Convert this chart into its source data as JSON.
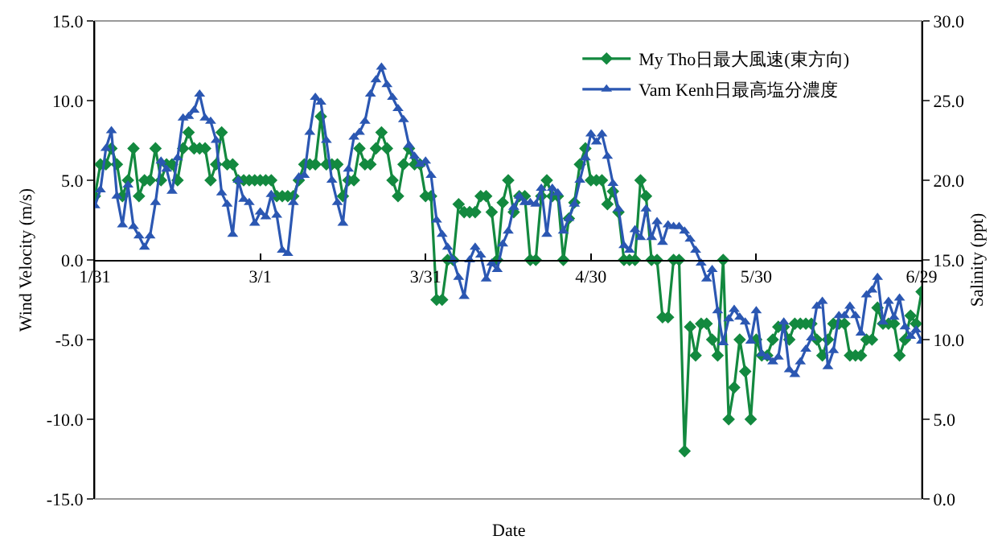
{
  "chart_data": {
    "type": "line",
    "xlabel": "Date",
    "ylabel": "Wind Velocity (m/s)",
    "y2label": "Salinity (ppt)",
    "x": [
      "--01-31",
      "--02-01",
      "--02-02",
      "--02-03",
      "--02-04",
      "--02-05",
      "--02-06",
      "--02-07",
      "--02-08",
      "--02-09",
      "--02-10",
      "--02-11",
      "--02-12",
      "--02-13",
      "--02-14",
      "--02-15",
      "--02-16",
      "--02-17",
      "--02-18",
      "--02-19",
      "--02-20",
      "--02-21",
      "--02-22",
      "--02-23",
      "--02-24",
      "--02-25",
      "--02-26",
      "--02-27",
      "--02-28",
      "--02-29",
      "--03-01",
      "--03-02",
      "--03-03",
      "--03-04",
      "--03-05",
      "--03-06",
      "--03-07",
      "--03-08",
      "--03-09",
      "--03-10",
      "--03-11",
      "--03-12",
      "--03-13",
      "--03-14",
      "--03-15",
      "--03-16",
      "--03-17",
      "--03-18",
      "--03-19",
      "--03-20",
      "--03-21",
      "--03-22",
      "--03-23",
      "--03-24",
      "--03-25",
      "--03-26",
      "--03-27",
      "--03-28",
      "--03-29",
      "--03-30",
      "--03-31",
      "--04-01",
      "--04-02",
      "--04-03",
      "--04-04",
      "--04-05",
      "--04-06",
      "--04-07",
      "--04-08",
      "--04-09",
      "--04-10",
      "--04-11",
      "--04-12",
      "--04-13",
      "--04-14",
      "--04-15",
      "--04-16",
      "--04-17",
      "--04-18",
      "--04-19",
      "--04-20",
      "--04-21",
      "--04-22",
      "--04-23",
      "--04-24",
      "--04-25",
      "--04-26",
      "--04-27",
      "--04-28",
      "--04-29",
      "--04-30",
      "--05-01",
      "--05-02",
      "--05-03",
      "--05-04",
      "--05-05",
      "--05-06",
      "--05-07",
      "--05-08",
      "--05-09",
      "--05-10",
      "--05-11",
      "--05-12",
      "--05-13",
      "--05-14",
      "--05-15",
      "--05-16",
      "--05-17",
      "--05-18",
      "--05-19",
      "--05-20",
      "--05-21",
      "--05-22",
      "--05-23",
      "--05-24",
      "--05-25",
      "--05-26",
      "--05-27",
      "--05-28",
      "--05-29",
      "--05-30",
      "--05-31",
      "--06-01",
      "--06-02",
      "--06-03",
      "--06-04",
      "--06-05",
      "--06-06",
      "--06-07",
      "--06-08",
      "--06-09",
      "--06-10",
      "--06-11",
      "--06-12",
      "--06-13",
      "--06-14",
      "--06-15",
      "--06-16",
      "--06-17",
      "--06-18",
      "--06-19",
      "--06-20",
      "--06-21",
      "--06-22",
      "--06-23",
      "--06-24",
      "--06-25",
      "--06-26",
      "--06-27",
      "--06-28",
      "--06-29"
    ],
    "series": [
      {
        "name": "My Tho日最大風速(東方向)",
        "color": "#13893f",
        "marker": "diamond",
        "values": [
          4,
          6,
          6,
          7,
          6,
          4,
          5,
          7,
          4,
          5,
          5,
          7,
          5,
          6,
          6,
          5,
          7,
          8,
          7,
          7,
          7,
          5,
          6,
          8,
          6,
          6,
          5,
          5,
          5,
          5,
          5,
          5,
          5,
          4,
          4,
          4,
          4,
          5,
          6,
          6,
          6,
          9,
          6,
          6,
          6,
          4,
          5,
          5,
          7,
          6,
          6,
          7,
          8,
          7,
          5,
          4,
          6,
          7,
          6,
          6,
          4,
          4,
          -2.5,
          -2.5,
          0,
          0,
          3.5,
          3,
          3,
          3,
          4,
          4,
          3,
          0,
          3.6,
          5,
          3,
          4,
          4,
          0,
          0,
          4,
          5,
          4,
          4,
          0,
          2.6,
          3.6,
          6,
          7,
          5,
          5,
          5,
          3.5,
          4.3,
          3,
          0,
          0,
          0,
          5,
          4,
          0,
          0,
          -3.6,
          -3.6,
          0,
          0,
          -12,
          -4.2,
          -6,
          -4,
          -4,
          -5,
          -6,
          0,
          -10,
          -8,
          -5,
          -7,
          -10,
          -5,
          -6,
          -6,
          -5,
          -4.2,
          -4.2,
          -5,
          -4,
          -4,
          -4,
          -4,
          -5,
          -6,
          -5,
          -4,
          -4,
          -4,
          -6,
          -6,
          -6,
          -5,
          -5,
          -3,
          -4,
          -4,
          -4,
          -6,
          -5,
          -3.5,
          -4,
          -2
        ]
      },
      {
        "name": "Vam Kenh日最高塩分濃度",
        "color": "#2b57b2",
        "marker": "triangle",
        "axis": "y2",
        "values": [
          18.4,
          19.4,
          22,
          23.1,
          19,
          17.2,
          19.7,
          17.1,
          16.5,
          15.8,
          16.5,
          18.6,
          21.2,
          20.7,
          19.3,
          21.4,
          23.9,
          24,
          24.4,
          25.4,
          23.9,
          23.7,
          22.5,
          19.2,
          18.5,
          16.6,
          20,
          18.8,
          18.6,
          17.3,
          18,
          17.7,
          19.1,
          17.8,
          15.6,
          15.4,
          18.6,
          20.2,
          20.3,
          23,
          25.2,
          24.9,
          22.5,
          20,
          18.6,
          17.3,
          20.7,
          22.7,
          23,
          23.7,
          25.4,
          26.3,
          27.1,
          26,
          25.2,
          24.5,
          23.8,
          22.2,
          21.5,
          21,
          21.2,
          20.3,
          17.5,
          16.6,
          15.8,
          15,
          13.9,
          12.7,
          15,
          15.8,
          15.3,
          13.8,
          14.8,
          14.4,
          16,
          16.8,
          18.3,
          19,
          18.6,
          18.6,
          18.5,
          19.5,
          16.6,
          19.5,
          19.2,
          16.8,
          17.6,
          18.5,
          20,
          21.4,
          22.9,
          22.4,
          22.9,
          21.5,
          19.8,
          18.2,
          15.9,
          15.6,
          16.9,
          16.4,
          18.2,
          16.4,
          17.4,
          16.1,
          17.2,
          17.1,
          17.1,
          16.8,
          16.3,
          15.6,
          14.8,
          13.8,
          14.4,
          11.8,
          9.8,
          11.3,
          11.9,
          11.4,
          11.1,
          9.9,
          11.8,
          9.1,
          8.9,
          8.6,
          8.9,
          11.1,
          8.1,
          7.8,
          8.6,
          9.4,
          10.1,
          12.1,
          12.4,
          8.3,
          9.3,
          11.5,
          11.5,
          12.1,
          11.5,
          10.4,
          12.8,
          13.1,
          13.9,
          11.1,
          12.4,
          11.4,
          12.6,
          10.8,
          10.2,
          10.6,
          9.9
        ]
      }
    ],
    "xlim": [
      "--01-31",
      "--06-29"
    ],
    "xticks": [
      {
        "value": "--01-31",
        "label": "1/31"
      },
      {
        "value": "--03-01",
        "label": "3/1"
      },
      {
        "value": "--03-31",
        "label": "3/31"
      },
      {
        "value": "--04-30",
        "label": "4/30"
      },
      {
        "value": "--05-30",
        "label": "5/30"
      },
      {
        "value": "--06-29",
        "label": "6/29"
      }
    ],
    "ylim": [
      -15,
      15
    ],
    "yticks": [
      {
        "value": -15,
        "label": "-15.0"
      },
      {
        "value": -10,
        "label": "-10.0"
      },
      {
        "value": -5,
        "label": "-5.0"
      },
      {
        "value": 0,
        "label": "0.0"
      },
      {
        "value": 5,
        "label": "5.0"
      },
      {
        "value": 10,
        "label": "10.0"
      },
      {
        "value": 15,
        "label": "15.0"
      }
    ],
    "y2lim": [
      0,
      30
    ],
    "y2ticks": [
      {
        "value": 0,
        "label": "0.0"
      },
      {
        "value": 5,
        "label": "5.0"
      },
      {
        "value": 10,
        "label": "10.0"
      },
      {
        "value": 15,
        "label": "15.0"
      },
      {
        "value": 20,
        "label": "20.0"
      },
      {
        "value": 25,
        "label": "25.0"
      },
      {
        "value": 30,
        "label": "30.0"
      }
    ],
    "grid": false,
    "legend": "top right",
    "line_style": "solid"
  }
}
